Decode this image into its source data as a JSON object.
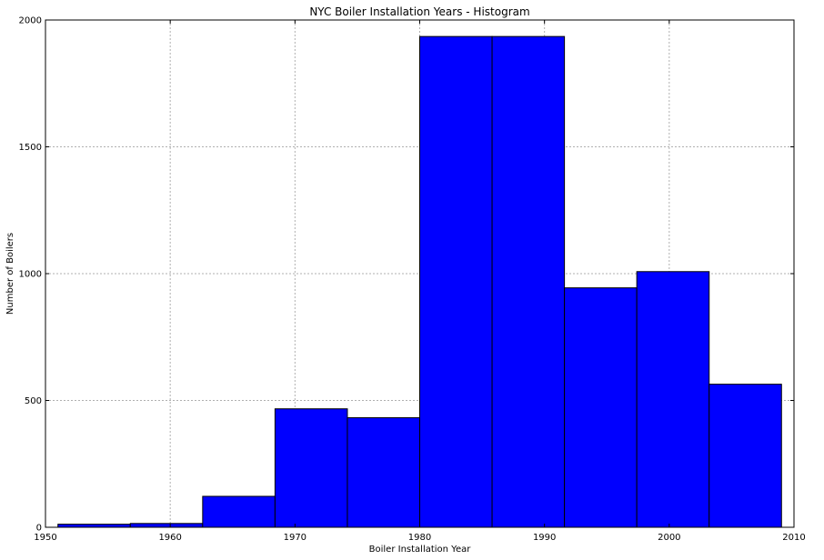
{
  "chart_data": {
    "type": "bar",
    "title": "NYC Boiler Installation Years - Histogram",
    "xlabel": "Boiler Installation Year",
    "ylabel": "Number of Boilers",
    "xlim": [
      1950,
      2010
    ],
    "ylim": [
      0,
      2000
    ],
    "grid": true,
    "bar_color": "#0000ff",
    "bins": [
      {
        "start": 1951.0,
        "end": 1956.8,
        "value": 12
      },
      {
        "start": 1956.8,
        "end": 1962.6,
        "value": 15
      },
      {
        "start": 1962.6,
        "end": 1968.4,
        "value": 122
      },
      {
        "start": 1968.4,
        "end": 1974.2,
        "value": 467
      },
      {
        "start": 1974.2,
        "end": 1980.0,
        "value": 432
      },
      {
        "start": 1980.0,
        "end": 1985.8,
        "value": 1935
      },
      {
        "start": 1985.8,
        "end": 1991.6,
        "value": 1935
      },
      {
        "start": 1991.6,
        "end": 1997.4,
        "value": 944
      },
      {
        "start": 1997.4,
        "end": 2003.2,
        "value": 1008
      },
      {
        "start": 2003.2,
        "end": 2009.0,
        "value": 564
      }
    ],
    "xticks": [
      1950,
      1960,
      1970,
      1980,
      1990,
      2000,
      2010
    ],
    "yticks": [
      0,
      500,
      1000,
      1500,
      2000
    ]
  }
}
